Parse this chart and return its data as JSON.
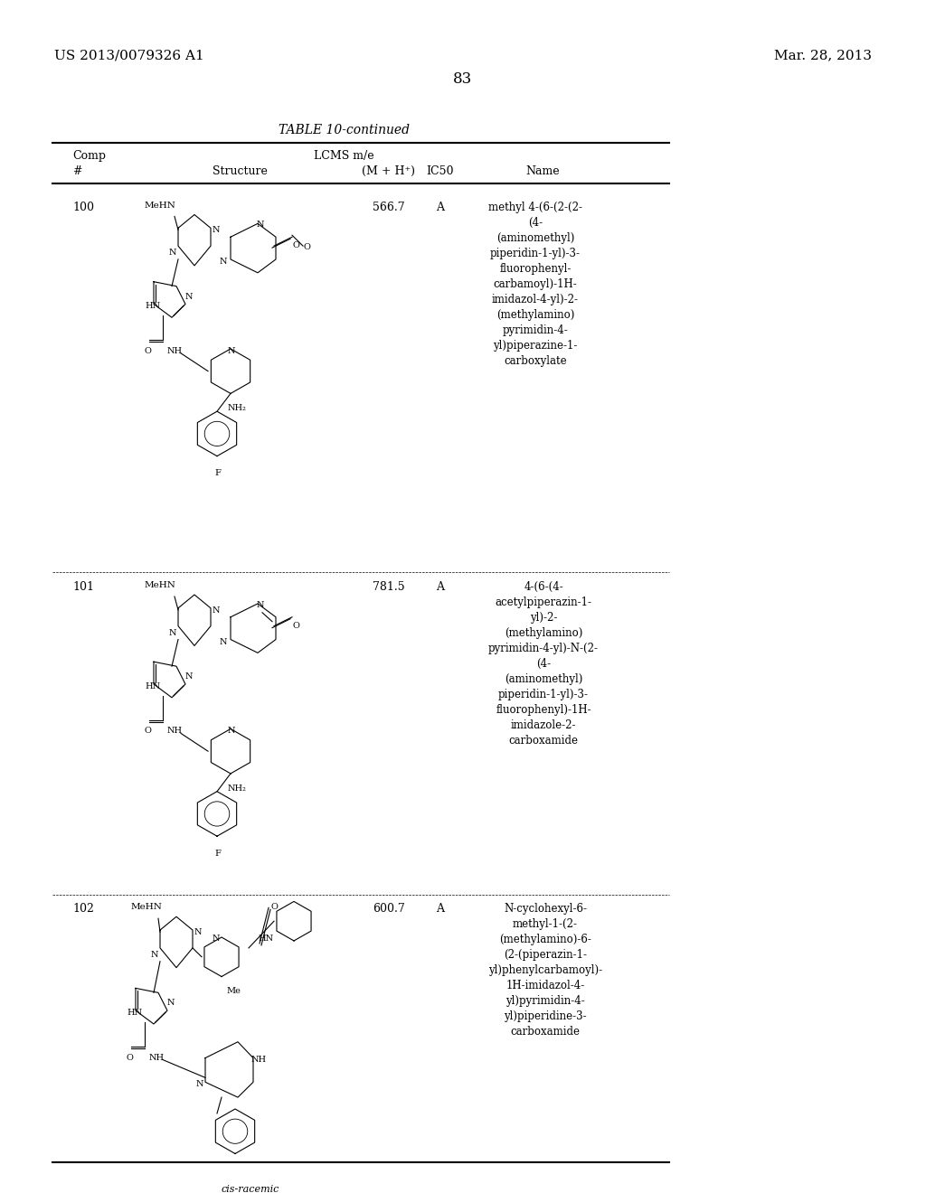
{
  "patent_left": "US 2013/0079326 A1",
  "patent_right": "Mar. 28, 2013",
  "page_number": "83",
  "table_title": "TABLE 10-continued",
  "col_headers_row1": [
    "Comp",
    "",
    "LCMS m/e",
    "",
    ""
  ],
  "col_headers_row2": [
    "#",
    "Structure",
    "(M + H⁺)",
    "IC50",
    "Name"
  ],
  "compounds": [
    {
      "number": "100",
      "lcms": "566.7",
      "ic50": "A",
      "name": "methyl 4-(6-(2-(2-\n(4-\n(aminomethyl)\npiperidin-1-yl)-3-\nfluorophenyl-\ncarbamoyl)-1H-\nimidazol-4-yl)-2-\n(methylamino)\npyrimidin-4-\nyl)piperazine-1-\ncarboxylate"
    },
    {
      "number": "101",
      "lcms": "781.5",
      "ic50": "A",
      "name": "4-(6-(4-\nacetylpiperazin-1-\nyl)-2-\n(methylamino)\npyrimidin-4-yl)-N-(2-\n(4-\n(aminomethyl)\npiperidin-1-yl)-3-\nfluorophenyl)-1H-\nimidazole-2-\ncarboxamide"
    },
    {
      "number": "102",
      "lcms": "600.7",
      "ic50": "A",
      "name": "N-cyclohexyl-6-\nmethyl-1-(2-\n(methylamino)-6-\n(2-(piperazin-1-\nyl)phenylcarbamoyl)-\n1H-imidazol-4-\nyl)pyrimidin-4-\nyl)piperidine-3-\ncarboxamide"
    }
  ],
  "bg_color": "#ffffff",
  "text_color": "#000000",
  "line_color": "#000000"
}
